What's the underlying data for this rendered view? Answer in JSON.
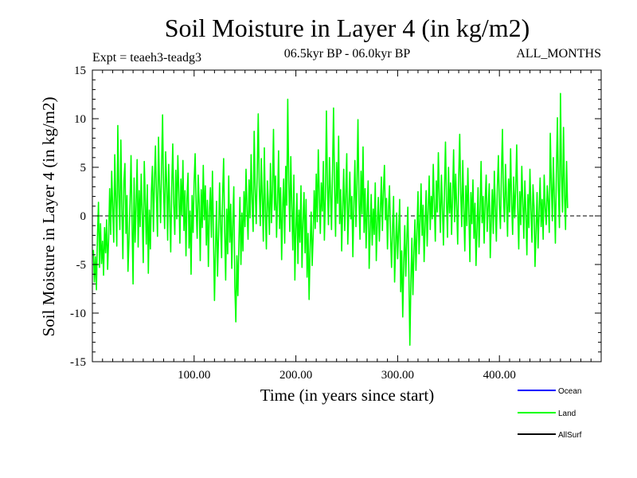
{
  "chart_data": {
    "type": "line",
    "title": "Soil Moisture in Layer 4 (in kg/m2)",
    "experiment_label": "Expt = teaeh3-teadg3",
    "period_label": "06.5kyr BP - 06.0kyr BP",
    "season_label": "ALL_MONTHS",
    "xlabel": "Time (in years since start)",
    "ylabel": "Soil Moisture in Layer 4 (in kg/m2)",
    "xlim": [
      0,
      500
    ],
    "ylim": [
      -15,
      15
    ],
    "x_tick_values": [
      100,
      200,
      300,
      400
    ],
    "x_tick_labels": [
      "100.00",
      "200.00",
      "300.00",
      "400.00"
    ],
    "y_tick_values": [
      15,
      10,
      5,
      0,
      -5,
      -10,
      -15
    ],
    "y_tick_labels": [
      "15",
      "10",
      "5",
      "0",
      "-5",
      "-10",
      "-15"
    ],
    "zero_line": true,
    "legend_position": "bottom-right",
    "series": [
      {
        "name": "Ocean",
        "color": "#0000ff",
        "values": []
      },
      {
        "name": "Land",
        "color": "#00ff00",
        "x_start": 1,
        "x_step": 1,
        "values": [
          -3.5,
          -6.8,
          -4.2,
          -7.6,
          -2.1,
          1.4,
          -5.3,
          -0.8,
          -4.9,
          -2.6,
          -6.1,
          -1.2,
          -3.8,
          -0.4,
          -5.5,
          -2.3,
          2.8,
          -1.9,
          4.6,
          0.7,
          -2.7,
          6.3,
          1.5,
          -3.1,
          9.3,
          2.2,
          -1.4,
          7.8,
          0.9,
          -4.4,
          3.6,
          5.4,
          -1.8,
          2.1,
          -5.7,
          -2.4,
          1.3,
          6.2,
          -0.5,
          -7.0,
          3.9,
          -2.7,
          1.1,
          5.8,
          -3.2,
          2.6,
          -1.1,
          4.3,
          0.2,
          -4.8,
          5.6,
          1.7,
          -2.9,
          3.2,
          -5.9,
          0.6,
          -3.4,
          2.4,
          5.1,
          -1.6,
          3.7,
          7.2,
          1.9,
          -2.1,
          8.1,
          3.3,
          -0.7,
          4.9,
          10.4,
          2.5,
          -1.3,
          6.6,
          3.4,
          -2.5,
          5.3,
          0.8,
          -3.7,
          2.9,
          7.4,
          1.2,
          -1.9,
          4.7,
          -0.3,
          6.2,
          2.4,
          -2.8,
          3.8,
          0.1,
          5.7,
          -1.5,
          2.6,
          -4.1,
          1.8,
          4.4,
          -3.3,
          0.5,
          -6.0,
          2.1,
          -1.7,
          3.5,
          6.4,
          0.9,
          -2.3,
          4.2,
          1.3,
          -4.6,
          2.7,
          -1.2,
          5.2,
          -0.4,
          3.1,
          -3.0,
          1.6,
          -5.2,
          0.4,
          2.9,
          -2.2,
          4.6,
          -1.8,
          -8.7,
          -3.5,
          1.5,
          -6.2,
          -2.1,
          3.4,
          -0.9,
          -4.3,
          2.2,
          5.9,
          -1.4,
          -6.6,
          0.7,
          -3.9,
          4.1,
          -2.7,
          1.2,
          -5.4,
          -0.6,
          3.0,
          -7.3,
          -10.9,
          -4.1,
          -8.2,
          -2.8,
          1.9,
          -5.0,
          0.3,
          -3.6,
          2.5,
          -1.1,
          4.8,
          0.6,
          -2.4,
          3.7,
          -0.2,
          6.3,
          1.4,
          -1.6,
          8.7,
          2.8,
          -0.8,
          4.5,
          10.5,
          3.1,
          -1.0,
          5.9,
          1.8,
          -2.6,
          7.0,
          0.4,
          -3.4,
          3.6,
          1.2,
          -1.9,
          5.4,
          -0.7,
          2.8,
          8.9,
          0.6,
          4.1,
          -2.2,
          1.5,
          6.7,
          -1.3,
          2.9,
          -4.5,
          0.8,
          3.8,
          -2.8,
          5.1,
          1.1,
          12.0,
          3.7,
          -1.6,
          6.1,
          0.9,
          -3.5,
          4.2,
          -6.6,
          -1.4,
          2.3,
          -4.9,
          0.6,
          -2.7,
          3.1,
          -5.3,
          -0.5,
          2.4,
          -3.8,
          1.7,
          -6.3,
          -1.8,
          -8.6,
          -3.2,
          0.4,
          -5.1,
          -2.0,
          2.6,
          -1.3,
          4.3,
          -0.6,
          6.8,
          2.1,
          -1.8,
          3.4,
          0.5,
          5.6,
          -2.5,
          1.9,
          10.8,
          3.2,
          -0.9,
          6.0,
          2.4,
          -1.4,
          4.7,
          11.1,
          3.0,
          -2.1,
          5.5,
          1.3,
          8.2,
          -0.8,
          2.7,
          -3.6,
          0.9,
          4.8,
          -1.5,
          2.2,
          6.4,
          -2.9,
          0.8,
          4.5,
          -0.3,
          2.0,
          -4.2,
          1.4,
          5.7,
          -1.1,
          3.3,
          9.9,
          1.6,
          -2.4,
          4.6,
          0.2,
          7.1,
          -1.7,
          2.8,
          -3.3,
          0.5,
          3.6,
          -5.4,
          -1.6,
          2.2,
          -3.0,
          0.7,
          -1.9,
          3.4,
          -4.6,
          -0.8,
          1.9,
          -2.6,
          0.4,
          4.0,
          -1.5,
          2.6,
          5.2,
          -0.4,
          1.8,
          -3.4,
          0.6,
          3.1,
          -2.1,
          -5.3,
          -1.2,
          2.0,
          -6.8,
          -3.1,
          0.3,
          -4.4,
          -1.5,
          1.7,
          -7.8,
          -3.6,
          -10.4,
          -4.8,
          -1.0,
          -6.2,
          -2.5,
          0.9,
          -5.8,
          -13.3,
          -6.9,
          -2.3,
          -8.1,
          -3.7,
          -0.4,
          -5.6,
          -1.6,
          2.5,
          -3.9,
          -0.6,
          3.3,
          -2.0,
          1.1,
          -4.7,
          -0.9,
          2.6,
          -3.1,
          0.5,
          4.1,
          -1.4,
          2.0,
          -0.3,
          5.3,
          1.2,
          -2.6,
          3.6,
          0.4,
          6.5,
          1.8,
          -1.7,
          4.2,
          0.9,
          -3.0,
          2.6,
          7.6,
          1.5,
          -2.2,
          5.0,
          0.3,
          3.4,
          -1.9,
          2.1,
          6.8,
          -0.6,
          4.3,
          1.0,
          -2.9,
          3.9,
          8.4,
          2.3,
          -1.1,
          5.7,
          0.7,
          -3.6,
          3.1,
          -1.0,
          4.9,
          0.2,
          -4.7,
          2.4,
          -0.8,
          3.7,
          -2.3,
          1.3,
          -5.1,
          -1.4,
          2.9,
          -3.2,
          0.6,
          5.6,
          -0.7,
          2.0,
          -2.8,
          1.5,
          4.2,
          -1.6,
          0.9,
          3.3,
          -4.3,
          -0.5,
          2.7,
          -1.8,
          4.6,
          0.8,
          -2.6,
          3.0,
          6.2,
          1.1,
          -1.3,
          4.4,
          8.9,
          2.0,
          -0.6,
          5.3,
          1.6,
          -2.1,
          3.8,
          0.4,
          6.9,
          1.3,
          -1.9,
          4.0,
          -0.2,
          2.8,
          7.3,
          0.9,
          -3.4,
          2.5,
          -0.9,
          5.1,
          1.4,
          -2.3,
          3.6,
          0.3,
          -4.0,
          2.2,
          -1.2,
          4.8,
          0.6,
          -2.7,
          3.2,
          1.0,
          -5.2,
          -1.6,
          2.4,
          -3.3,
          0.5,
          3.9,
          -1.1,
          1.7,
          -2.4,
          4.2,
          0.8,
          -0.9,
          3.1,
          1.5,
          -1.7,
          8.5,
          3.4,
          -0.5,
          6.0,
          1.9,
          -2.8,
          4.5,
          10.1,
          2.6,
          -1.2,
          12.6,
          4.3,
          0.4,
          9.1,
          2.2,
          -1.4,
          5.6,
          0.8
        ]
      },
      {
        "name": "AllSurf",
        "color": "#000000",
        "values": []
      }
    ]
  }
}
